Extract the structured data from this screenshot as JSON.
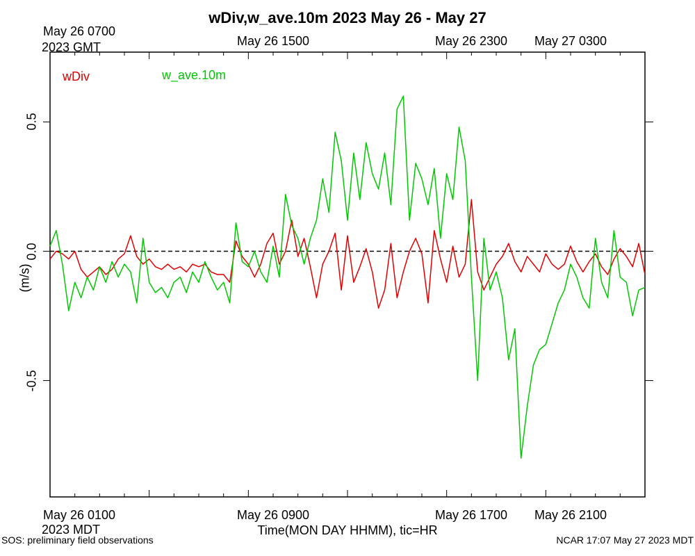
{
  "chart_data": {
    "type": "line",
    "title": "wDiv,w_ave.10m 2023 May 26 - May 27",
    "xlabel": "Time(MON DAY HHMM), tic=HR",
    "ylabel": "(m/s)",
    "x_start_mdt": "2023-05-26 00:00",
    "x_end_mdt": "2023-05-27 00:00",
    "ylim": [
      -0.95,
      0.77
    ],
    "yticks": [
      -0.5,
      0.0,
      0.5
    ],
    "ytick_labels": [
      "-0.5",
      "0.0",
      "0.5"
    ],
    "top_axis": {
      "timezone": "GMT",
      "first_label_line1": "May 26 0700",
      "first_label_line2": "2023 GMT",
      "labels": [
        "May 26 1500",
        "May 26 2300",
        "May 27 0300"
      ]
    },
    "bottom_axis": {
      "timezone": "MDT",
      "first_label_line1": "May 26 0100",
      "first_label_line2": "2023 MDT",
      "labels": [
        "May 26 0900",
        "May 26 1700",
        "May 26 2100"
      ]
    },
    "reference_line": {
      "y": 0.0,
      "style": "dashed"
    },
    "legend_position": "top-left",
    "series": [
      {
        "name": "wDiv",
        "color": "#e00000",
        "points": [
          [
            0.0,
            -0.03
          ],
          [
            0.25,
            0.0
          ],
          [
            0.5,
            -0.01
          ],
          [
            0.75,
            -0.03
          ],
          [
            1.0,
            0.0
          ],
          [
            1.25,
            -0.07
          ],
          [
            1.5,
            -0.1
          ],
          [
            1.75,
            -0.08
          ],
          [
            2.0,
            -0.06
          ],
          [
            2.25,
            -0.09
          ],
          [
            2.5,
            -0.07
          ],
          [
            2.75,
            -0.03
          ],
          [
            3.0,
            -0.01
          ],
          [
            3.25,
            0.06
          ],
          [
            3.5,
            -0.02
          ],
          [
            3.75,
            -0.05
          ],
          [
            4.0,
            -0.03
          ],
          [
            4.25,
            -0.06
          ],
          [
            4.5,
            -0.07
          ],
          [
            4.75,
            -0.05
          ],
          [
            5.0,
            -0.07
          ],
          [
            5.25,
            -0.06
          ],
          [
            5.5,
            -0.08
          ],
          [
            5.75,
            -0.05
          ],
          [
            6.0,
            -0.06
          ],
          [
            6.25,
            -0.05
          ],
          [
            6.5,
            -0.08
          ],
          [
            6.75,
            -0.09
          ],
          [
            7.0,
            -0.09
          ],
          [
            7.25,
            -0.12
          ],
          [
            7.5,
            0.04
          ],
          [
            7.75,
            -0.02
          ],
          [
            8.0,
            -0.05
          ],
          [
            8.25,
            -0.1
          ],
          [
            8.5,
            -0.05
          ],
          [
            8.75,
            0.03
          ],
          [
            9.0,
            0.07
          ],
          [
            9.25,
            -0.05
          ],
          [
            9.5,
            0.0
          ],
          [
            9.75,
            0.12
          ],
          [
            10.0,
            -0.02
          ],
          [
            10.25,
            0.05
          ],
          [
            10.5,
            -0.06
          ],
          [
            10.75,
            -0.18
          ],
          [
            11.0,
            -0.05
          ],
          [
            11.25,
            0.0
          ],
          [
            11.5,
            0.07
          ],
          [
            11.75,
            -0.15
          ],
          [
            12.0,
            0.06
          ],
          [
            12.25,
            -0.12
          ],
          [
            12.5,
            -0.06
          ],
          [
            12.75,
            0.01
          ],
          [
            13.0,
            -0.08
          ],
          [
            13.25,
            -0.22
          ],
          [
            13.5,
            -0.15
          ],
          [
            13.75,
            0.03
          ],
          [
            14.0,
            -0.18
          ],
          [
            14.25,
            -0.08
          ],
          [
            14.5,
            0.0
          ],
          [
            14.75,
            0.05
          ],
          [
            15.0,
            -0.01
          ],
          [
            15.25,
            -0.2
          ],
          [
            15.5,
            0.08
          ],
          [
            15.75,
            -0.03
          ],
          [
            16.0,
            -0.12
          ],
          [
            16.25,
            0.02
          ],
          [
            16.5,
            -0.1
          ],
          [
            16.75,
            -0.05
          ],
          [
            17.0,
            0.2
          ],
          [
            17.25,
            -0.08
          ],
          [
            17.5,
            -0.15
          ],
          [
            17.75,
            -0.1
          ],
          [
            18.0,
            -0.05
          ],
          [
            18.25,
            -0.02
          ],
          [
            18.5,
            0.03
          ],
          [
            18.75,
            -0.04
          ],
          [
            19.0,
            -0.08
          ],
          [
            19.25,
            -0.02
          ],
          [
            19.5,
            -0.05
          ],
          [
            19.75,
            -0.08
          ],
          [
            20.0,
            -0.01
          ],
          [
            20.25,
            -0.05
          ],
          [
            20.5,
            -0.07
          ],
          [
            20.75,
            -0.05
          ],
          [
            21.0,
            0.02
          ],
          [
            21.25,
            -0.04
          ],
          [
            21.5,
            -0.08
          ],
          [
            21.75,
            -0.04
          ],
          [
            22.0,
            -0.01
          ],
          [
            22.25,
            -0.06
          ],
          [
            22.5,
            -0.09
          ],
          [
            22.75,
            -0.03
          ],
          [
            23.0,
            0.01
          ],
          [
            23.25,
            -0.02
          ],
          [
            23.5,
            -0.06
          ],
          [
            23.75,
            0.03
          ],
          [
            24.0,
            -0.09
          ]
        ]
      },
      {
        "name": "w_ave.10m",
        "color": "#00c800",
        "points": [
          [
            0.0,
            0.02
          ],
          [
            0.25,
            0.08
          ],
          [
            0.5,
            -0.05
          ],
          [
            0.75,
            -0.23
          ],
          [
            1.0,
            -0.12
          ],
          [
            1.25,
            -0.18
          ],
          [
            1.5,
            -0.1
          ],
          [
            1.75,
            -0.15
          ],
          [
            2.0,
            -0.06
          ],
          [
            2.25,
            -0.12
          ],
          [
            2.5,
            -0.04
          ],
          [
            2.75,
            -0.1
          ],
          [
            3.0,
            -0.05
          ],
          [
            3.25,
            -0.08
          ],
          [
            3.5,
            -0.2
          ],
          [
            3.75,
            0.05
          ],
          [
            4.0,
            -0.12
          ],
          [
            4.25,
            -0.16
          ],
          [
            4.5,
            -0.14
          ],
          [
            4.75,
            -0.18
          ],
          [
            5.0,
            -0.12
          ],
          [
            5.25,
            -0.1
          ],
          [
            5.5,
            -0.16
          ],
          [
            5.75,
            -0.08
          ],
          [
            6.0,
            -0.12
          ],
          [
            6.25,
            -0.04
          ],
          [
            6.5,
            -0.1
          ],
          [
            6.75,
            -0.15
          ],
          [
            7.0,
            -0.12
          ],
          [
            7.25,
            -0.2
          ],
          [
            7.5,
            0.11
          ],
          [
            7.75,
            -0.04
          ],
          [
            8.0,
            -0.06
          ],
          [
            8.25,
            0.0
          ],
          [
            8.5,
            -0.08
          ],
          [
            8.75,
            -0.12
          ],
          [
            9.0,
            0.02
          ],
          [
            9.25,
            -0.1
          ],
          [
            9.5,
            0.22
          ],
          [
            9.75,
            0.1
          ],
          [
            10.0,
            0.05
          ],
          [
            10.25,
            -0.05
          ],
          [
            10.5,
            0.05
          ],
          [
            10.75,
            0.12
          ],
          [
            11.0,
            0.28
          ],
          [
            11.25,
            0.15
          ],
          [
            11.5,
            0.46
          ],
          [
            11.75,
            0.35
          ],
          [
            12.0,
            0.12
          ],
          [
            12.25,
            0.38
          ],
          [
            12.5,
            0.2
          ],
          [
            12.75,
            0.42
          ],
          [
            13.0,
            0.3
          ],
          [
            13.25,
            0.24
          ],
          [
            13.5,
            0.38
          ],
          [
            13.75,
            0.18
          ],
          [
            14.0,
            0.55
          ],
          [
            14.25,
            0.6
          ],
          [
            14.5,
            0.12
          ],
          [
            14.75,
            0.34
          ],
          [
            15.0,
            0.28
          ],
          [
            15.25,
            0.18
          ],
          [
            15.5,
            0.32
          ],
          [
            15.75,
            0.05
          ],
          [
            16.0,
            0.3
          ],
          [
            16.25,
            0.2
          ],
          [
            16.5,
            0.48
          ],
          [
            16.75,
            0.35
          ],
          [
            17.0,
            -0.1
          ],
          [
            17.25,
            -0.5
          ],
          [
            17.5,
            0.05
          ],
          [
            17.75,
            -0.15
          ],
          [
            18.0,
            -0.08
          ],
          [
            18.25,
            -0.18
          ],
          [
            18.5,
            -0.42
          ],
          [
            18.75,
            -0.3
          ],
          [
            19.0,
            -0.8
          ],
          [
            19.25,
            -0.6
          ],
          [
            19.5,
            -0.44
          ],
          [
            19.75,
            -0.38
          ],
          [
            20.0,
            -0.36
          ],
          [
            20.25,
            -0.28
          ],
          [
            20.5,
            -0.2
          ],
          [
            20.75,
            -0.15
          ],
          [
            21.0,
            -0.05
          ],
          [
            21.25,
            -0.1
          ],
          [
            21.5,
            -0.18
          ],
          [
            21.75,
            -0.22
          ],
          [
            22.0,
            0.05
          ],
          [
            22.25,
            -0.12
          ],
          [
            22.5,
            -0.18
          ],
          [
            22.75,
            0.08
          ],
          [
            23.0,
            -0.1
          ],
          [
            23.25,
            -0.12
          ],
          [
            23.5,
            -0.25
          ],
          [
            23.75,
            -0.15
          ],
          [
            24.0,
            -0.14
          ]
        ]
      }
    ]
  },
  "footer": {
    "left": "SOS: preliminary field observations",
    "right": "NCAR 17:07 May 27 2023 MDT"
  }
}
